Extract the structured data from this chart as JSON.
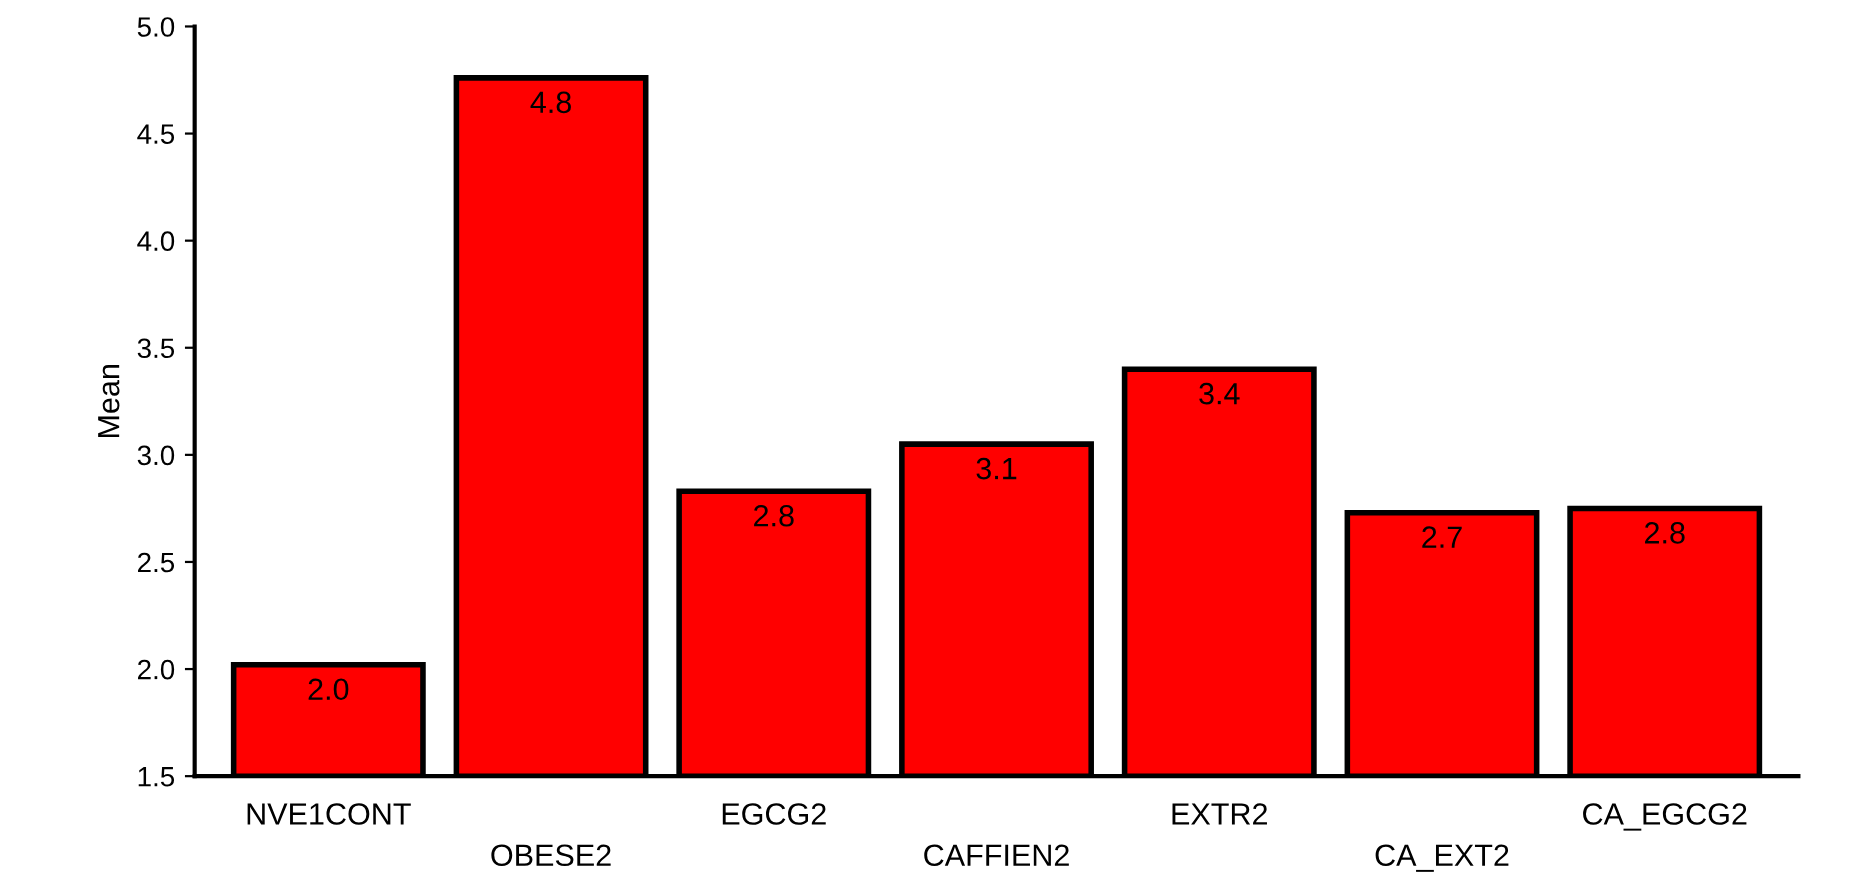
{
  "chart_data": {
    "type": "bar",
    "ylabel": "Mean",
    "categories": [
      "NVE1CONT",
      "OBESE2",
      "EGCG2",
      "CAFFIEN2",
      "EXTR2",
      "CA_EXT2",
      "CA_EGCG2"
    ],
    "values": [
      2.02,
      4.76,
      2.83,
      3.05,
      3.4,
      2.73,
      2.75
    ],
    "value_labels": [
      "2.0",
      "4.8",
      "2.8",
      "3.1",
      "3.4",
      "2.7",
      "2.8"
    ],
    "color": "#ff0000",
    "ylim": [
      1.5,
      5.0
    ],
    "yticks": [
      "1.5",
      "2.0",
      "2.5",
      "3.0",
      "3.5",
      "4.0",
      "4.5",
      "5.0"
    ],
    "grid": false,
    "legend": false
  }
}
